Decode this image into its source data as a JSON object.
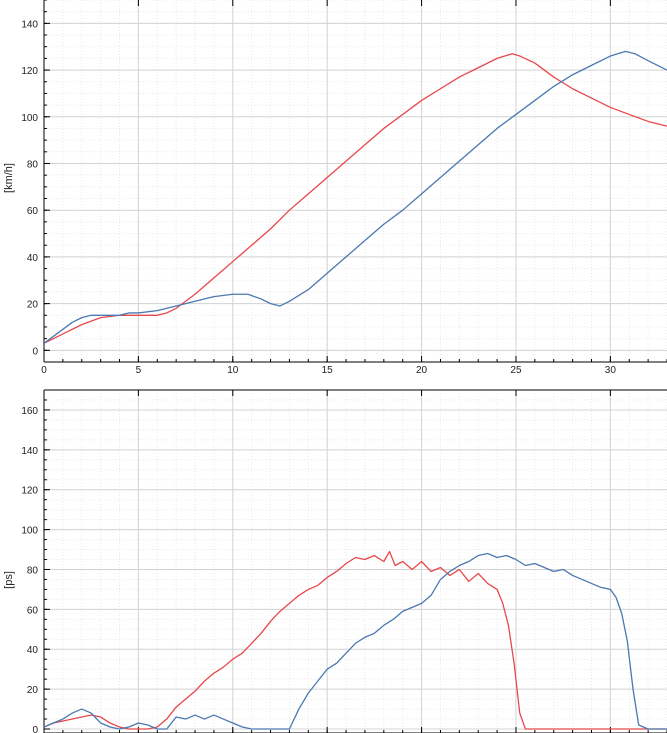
{
  "chart_data": [
    {
      "type": "line",
      "ylabel": "[km/h]",
      "xlim": [
        0,
        33
      ],
      "ylim": [
        -5,
        150
      ],
      "x_ticks": [
        0,
        5,
        10,
        15,
        20,
        25,
        30
      ],
      "x_tick_labels": [
        "0",
        "5",
        "10",
        "15",
        "20",
        "25",
        "30"
      ],
      "y_ticks": [
        0,
        20,
        40,
        60,
        80,
        100,
        120,
        140
      ],
      "y_tick_labels": [
        "0",
        "20",
        "40",
        "60",
        "80",
        "100",
        "120",
        "140"
      ],
      "grid": true,
      "series": [
        {
          "color": "#e8474a",
          "x": [
            0,
            1,
            2,
            3,
            4,
            5,
            6,
            6.5,
            7,
            8,
            9,
            10,
            11,
            12,
            13,
            14,
            15,
            16,
            17,
            18,
            19,
            20,
            21,
            22,
            23,
            24,
            24.8,
            25.2,
            26,
            27,
            28,
            29,
            30,
            31,
            32,
            33
          ],
          "y": [
            3,
            7,
            11,
            14,
            15,
            15,
            15,
            16,
            18,
            24,
            31,
            38,
            45,
            52,
            60,
            67,
            74,
            81,
            88,
            95,
            101,
            107,
            112,
            117,
            121,
            125,
            127,
            126,
            123,
            117,
            112,
            108,
            104,
            101,
            98,
            96
          ]
        },
        {
          "color": "#4a79b0",
          "x": [
            0,
            0.5,
            1,
            1.5,
            2,
            2.5,
            3,
            3.5,
            4,
            4.5,
            5,
            6,
            7,
            8,
            9,
            10,
            10.8,
            11.5,
            12,
            12.5,
            13,
            14,
            15,
            16,
            17,
            18,
            19,
            20,
            21,
            22,
            23,
            24,
            25,
            26,
            27,
            28,
            29,
            30,
            30.8,
            31.3,
            32,
            33
          ],
          "y": [
            3,
            6,
            9,
            12,
            14,
            15,
            15,
            15,
            15,
            16,
            16,
            17,
            19,
            21,
            23,
            24,
            24,
            22,
            20,
            19,
            21,
            26,
            33,
            40,
            47,
            54,
            60,
            67,
            74,
            81,
            88,
            95,
            101,
            107,
            113,
            118,
            122,
            126,
            128,
            127,
            124,
            120
          ]
        }
      ]
    },
    {
      "type": "line",
      "ylabel": "[ps]",
      "xlim": [
        0,
        33
      ],
      "ylim": [
        -2,
        170
      ],
      "x_ticks": [
        0,
        5,
        10,
        15,
        20,
        25,
        30
      ],
      "y_ticks": [
        0,
        20,
        40,
        60,
        80,
        100,
        120,
        140,
        160
      ],
      "y_tick_labels": [
        "0",
        "20",
        "40",
        "60",
        "80",
        "100",
        "120",
        "140",
        "160"
      ],
      "grid": true,
      "series": [
        {
          "color": "#e8474a",
          "x": [
            0,
            0.5,
            1,
            1.5,
            2,
            2.5,
            3,
            3.5,
            4,
            4.5,
            5,
            5.5,
            6,
            6.5,
            7,
            7.5,
            8,
            8.5,
            9,
            9.5,
            10,
            10.5,
            11,
            11.5,
            12,
            12.5,
            13,
            13.5,
            14,
            14.5,
            15,
            15.5,
            16,
            16.5,
            17,
            17.5,
            18,
            18.3,
            18.6,
            19,
            19.5,
            20,
            20.5,
            21,
            21.5,
            22,
            22.5,
            23,
            23.5,
            24,
            24.3,
            24.6,
            24.9,
            25.2,
            25.5,
            26,
            27,
            28,
            29,
            30,
            31,
            32,
            33
          ],
          "y": [
            1,
            3,
            4,
            5,
            6,
            7,
            6,
            3,
            1,
            0,
            0,
            0,
            1,
            5,
            11,
            15,
            19,
            24,
            28,
            31,
            35,
            38,
            43,
            48,
            54,
            59,
            63,
            67,
            70,
            72,
            76,
            79,
            83,
            86,
            85,
            87,
            84,
            89,
            82,
            84,
            80,
            84,
            79,
            81,
            77,
            80,
            74,
            78,
            73,
            70,
            63,
            52,
            33,
            8,
            0,
            0,
            0,
            0,
            0,
            0,
            0,
            0,
            0
          ]
        },
        {
          "color": "#4a79b0",
          "x": [
            0,
            0.5,
            1,
            1.5,
            2,
            2.5,
            3,
            3.5,
            4,
            4.5,
            5,
            5.5,
            6,
            6.5,
            7,
            7.5,
            8,
            8.5,
            9,
            9.5,
            10,
            10.5,
            11,
            11.5,
            12,
            12.5,
            13,
            13.5,
            14,
            14.5,
            15,
            15.5,
            16,
            16.5,
            17,
            17.5,
            18,
            18.5,
            19,
            19.5,
            20,
            20.5,
            21,
            21.5,
            22,
            22.5,
            23,
            23.5,
            24,
            24.5,
            25,
            25.5,
            26,
            26.5,
            27,
            27.5,
            28,
            28.5,
            29,
            29.5,
            30,
            30.3,
            30.6,
            30.9,
            31.2,
            31.5,
            32,
            33
          ],
          "y": [
            1,
            3,
            5,
            8,
            10,
            8,
            3,
            1,
            0,
            1,
            3,
            2,
            0,
            0,
            6,
            5,
            7,
            5,
            7,
            5,
            3,
            1,
            0,
            0,
            0,
            0,
            0,
            10,
            18,
            24,
            30,
            33,
            38,
            43,
            46,
            48,
            52,
            55,
            59,
            61,
            63,
            67,
            75,
            79,
            82,
            84,
            87,
            88,
            86,
            87,
            85,
            82,
            83,
            81,
            79,
            80,
            77,
            75,
            73,
            71,
            70,
            66,
            58,
            44,
            20,
            2,
            0,
            0
          ]
        }
      ]
    }
  ]
}
